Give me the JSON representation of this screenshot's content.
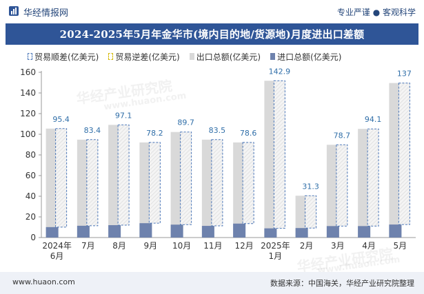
{
  "header": {
    "brand": "华经情报网",
    "tagline": "专业严谨 ● 客观科学"
  },
  "watermarks": [
    "华经产业研究院",
    "www.huaon.com",
    "华经产业研究院",
    "www.huaon.com"
  ],
  "colors": {
    "title_bg": "#2f5597",
    "export": "#d9d9d9",
    "import": "#6e82ad",
    "surplus_border": "#4a76b8",
    "deficit_border": "#d4b800",
    "label": "#2f6ea8"
  },
  "legend": {
    "surplus": "贸易顺差(亿美元)",
    "deficit": "贸易逆差(亿美元)",
    "export": "出口总额(亿美元)",
    "import": "进口总额(亿美元)"
  },
  "footer": {
    "site": "www.huaon.com",
    "source": "数据来源：中国海关，华经产业研究院整理"
  },
  "chart_data": {
    "type": "bar",
    "title": "2024-2025年5月年金华市(境内目的地/货源地)月度进出口差额",
    "categories": [
      "2024年\n6月",
      "7月",
      "8月",
      "9月",
      "10月",
      "11月",
      "12月",
      "2025年\n1月",
      "2月",
      "3月",
      "4月",
      "5月"
    ],
    "series": [
      {
        "name": "出口总额(亿美元)",
        "values": [
          105.5,
          94.8,
          109.1,
          92.1,
          102.2,
          94.8,
          92.1,
          151.8,
          40.5,
          89.8,
          105.2,
          149.6
        ]
      },
      {
        "name": "进口总额(亿美元)",
        "values": [
          10.1,
          11.4,
          12.0,
          13.9,
          12.5,
          11.3,
          13.5,
          8.9,
          9.2,
          11.1,
          11.1,
          12.6
        ]
      },
      {
        "name": "贸易顺差(亿美元)",
        "values": [
          95.4,
          83.4,
          97.1,
          78.2,
          89.7,
          83.5,
          78.6,
          142.9,
          31.3,
          78.7,
          94.1,
          137
        ]
      },
      {
        "name": "贸易逆差(亿美元)",
        "values": [
          0,
          0,
          0,
          0,
          0,
          0,
          0,
          0,
          0,
          0,
          0,
          0
        ]
      }
    ],
    "value_labels": [
      "95.4",
      "83.4",
      "97.1",
      "78.2",
      "89.7",
      "83.5",
      "78.6",
      "142.9",
      "31.3",
      "78.7",
      "94.1",
      "137"
    ],
    "ylim": [
      0,
      160
    ],
    "yticks": [
      "0",
      "20",
      "40",
      "60",
      "80",
      "100",
      "120",
      "140",
      "160"
    ],
    "grid": false,
    "legend_position": "top"
  }
}
